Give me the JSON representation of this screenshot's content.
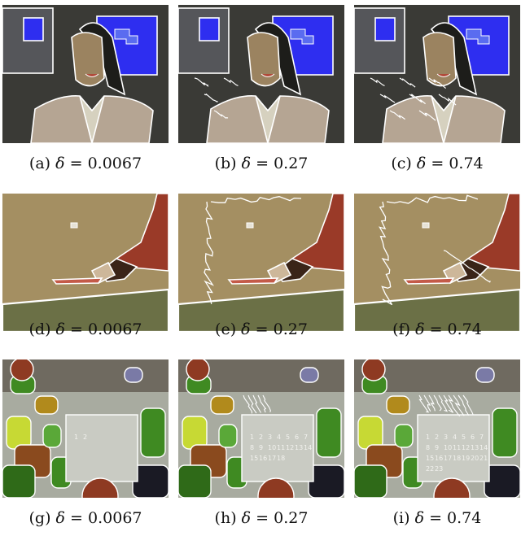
{
  "subfigures": [
    {
      "id": "a",
      "label": "(a)",
      "delta": "0.0067",
      "scene": "portrait",
      "level": 0
    },
    {
      "id": "b",
      "label": "(b)",
      "delta": "0.27",
      "scene": "portrait",
      "level": 1
    },
    {
      "id": "c",
      "label": "(c)",
      "delta": "0.74",
      "scene": "portrait",
      "level": 2
    },
    {
      "id": "d",
      "label": "(d)",
      "delta": "0.0067",
      "scene": "table",
      "level": 0
    },
    {
      "id": "e",
      "label": "(e)",
      "delta": "0.27",
      "scene": "table",
      "level": 1
    },
    {
      "id": "f",
      "label": "(f)",
      "delta": "0.74",
      "scene": "table",
      "level": 2
    },
    {
      "id": "g",
      "label": "(g)",
      "delta": "0.0067",
      "scene": "calendar",
      "level": 0
    },
    {
      "id": "h",
      "label": "(h)",
      "delta": "0.27",
      "scene": "calendar",
      "level": 1
    },
    {
      "id": "i",
      "label": "(i)",
      "delta": "0.74",
      "scene": "calendar",
      "level": 2
    }
  ],
  "symbol": "δ",
  "equals": "=",
  "colors": {
    "boundary": "#ffffff",
    "portrait_bg": "#3a3a36",
    "blue": "#2e2ef0",
    "skin": "#9b8360",
    "jacket": "#b5a593",
    "table_bg": "#a48f62",
    "arm": "#9a3a28",
    "floor": "#6b7046",
    "cal_bg": "#a8aba0",
    "green": "#3f8a22"
  },
  "calendar_digits": [
    "1",
    "2",
    "3",
    "4",
    "5",
    "6",
    "7",
    "8",
    "9",
    "10",
    "11",
    "12",
    "13",
    "14",
    "15",
    "16",
    "17",
    "18",
    "19",
    "20",
    "21",
    "22",
    "23"
  ]
}
